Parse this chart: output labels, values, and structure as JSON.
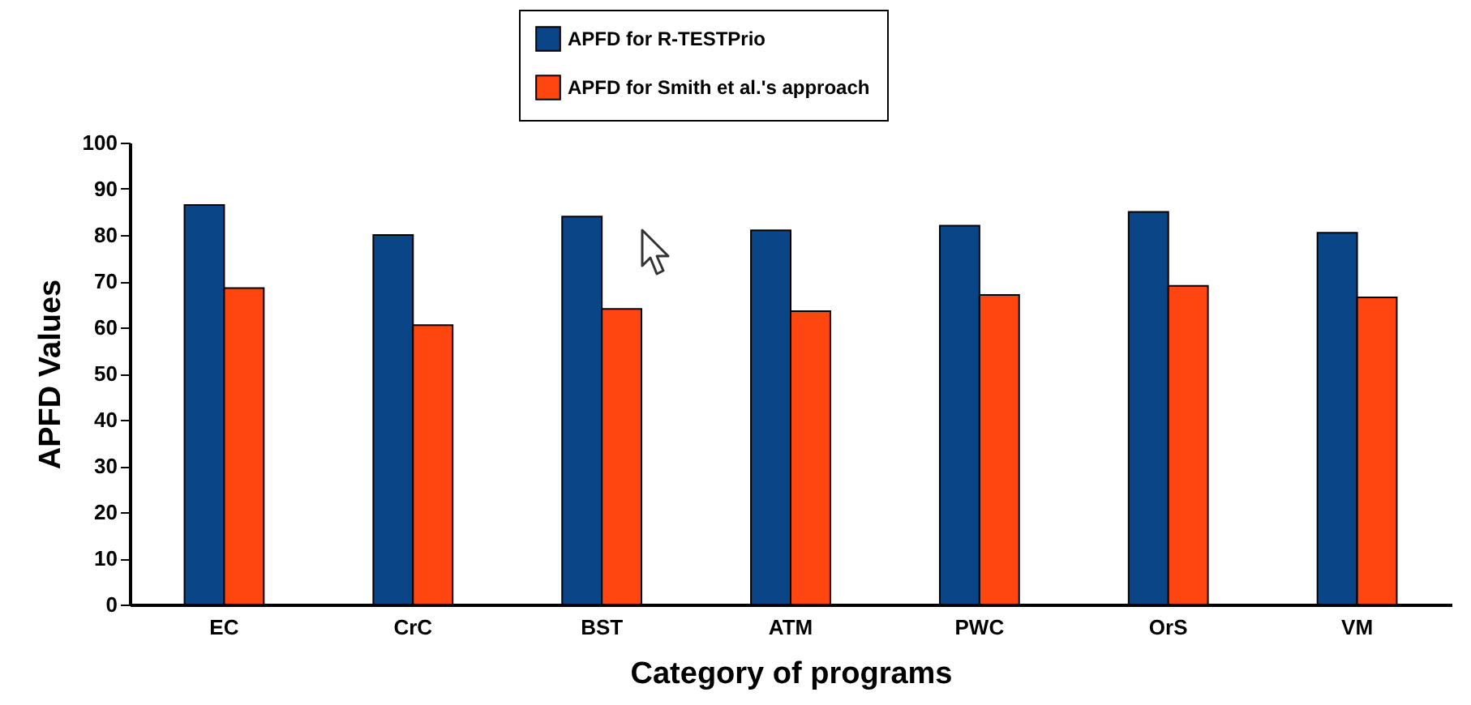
{
  "chart_data": {
    "type": "bar",
    "xlabel": "Category of programs",
    "ylabel": "APFD Values",
    "categories": [
      "EC",
      "CrC",
      "BST",
      "ATM",
      "PWC",
      "OrS",
      "VM"
    ],
    "series": [
      {
        "name": "APFD for R-TESTPrio",
        "color": "#0a4587",
        "values": [
          86.5,
          80,
          84,
          81,
          82,
          85,
          80.5
        ]
      },
      {
        "name": "APFD for Smith et al.'s approach",
        "color": "#ff4510",
        "values": [
          68.5,
          60.5,
          64,
          63.5,
          67,
          69,
          66.5
        ]
      }
    ],
    "ylim": [
      0,
      100
    ],
    "yticks": [
      0,
      10,
      20,
      30,
      40,
      50,
      60,
      70,
      80,
      90,
      100
    ],
    "grid": false,
    "legend": "top"
  }
}
